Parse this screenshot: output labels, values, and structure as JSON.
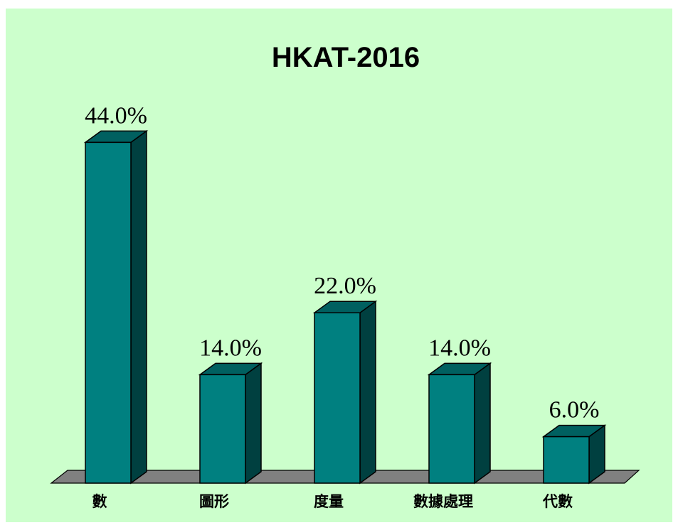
{
  "chart_data": {
    "type": "bar",
    "title": "HKAT-2016",
    "categories": [
      "數",
      "圖形",
      "度量",
      "數據處理",
      "代數"
    ],
    "values": [
      44,
      14,
      22,
      14,
      6
    ],
    "value_labels": [
      "44.0%",
      "14.0%",
      "22.0%",
      "14.0%",
      "6.0%"
    ],
    "color": "#008080"
  }
}
